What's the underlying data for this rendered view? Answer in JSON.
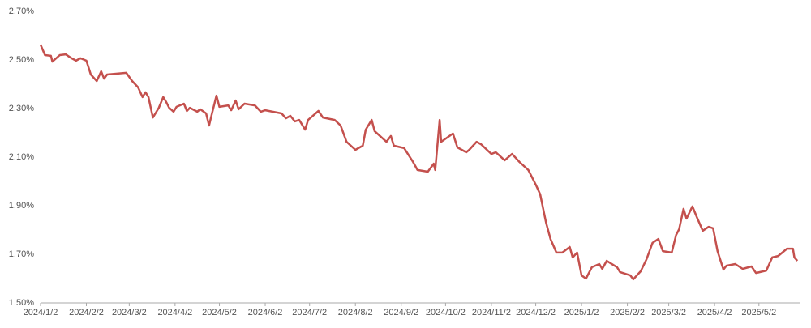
{
  "chart_data": {
    "type": "line",
    "color": "#c4504d",
    "grid": false,
    "x": [
      "2024/1/2",
      "2024/1/5",
      "2024/1/9",
      "2024/1/10",
      "2024/1/15",
      "2024/1/19",
      "2024/1/23",
      "2024/1/26",
      "2024/1/29",
      "2024/2/2",
      "2024/2/5",
      "2024/2/9",
      "2024/2/12",
      "2024/2/14",
      "2024/2/16",
      "2024/2/29",
      "2024/3/4",
      "2024/3/8",
      "2024/3/11",
      "2024/3/13",
      "2024/3/15",
      "2024/3/18",
      "2024/3/22",
      "2024/3/25",
      "2024/3/27",
      "2024/3/29",
      "2024/4/1",
      "2024/4/3",
      "2024/4/8",
      "2024/4/10",
      "2024/4/12",
      "2024/4/17",
      "2024/4/19",
      "2024/4/23",
      "2024/4/25",
      "2024/4/27",
      "2024/4/30",
      "2024/5/2",
      "2024/5/8",
      "2024/5/10",
      "2024/5/13",
      "2024/5/15",
      "2024/5/19",
      "2024/5/26",
      "2024/5/30",
      "2024/6/2",
      "2024/6/13",
      "2024/6/16",
      "2024/6/19",
      "2024/6/22",
      "2024/6/25",
      "2024/6/29",
      "2024/7/1",
      "2024/7/8",
      "2024/7/11",
      "2024/7/19",
      "2024/7/23",
      "2024/7/27",
      "2024/8/2",
      "2024/8/7",
      "2024/8/9",
      "2024/8/13",
      "2024/8/15",
      "2024/8/23",
      "2024/8/26",
      "2024/8/28",
      "2024/9/4",
      "2024/9/10",
      "2024/9/13",
      "2024/9/20",
      "2024/9/24",
      "2024/9/25",
      "2024/9/28",
      "2024/9/29",
      "2024/10/7",
      "2024/10/10",
      "2024/10/16",
      "2024/10/18",
      "2024/10/23",
      "2024/10/26",
      "2024/11/2",
      "2024/11/5",
      "2024/11/11",
      "2024/11/16",
      "2024/11/21",
      "2024/11/27",
      "2024/12/2",
      "2024/12/5",
      "2024/12/9",
      "2024/12/12",
      "2024/12/16",
      "2024/12/20",
      "2024/12/25",
      "2024/12/27",
      "2024/12/30",
      "2025/1/2",
      "2025/1/5",
      "2025/1/9",
      "2025/1/14",
      "2025/1/16",
      "2025/1/19",
      "2025/1/26",
      "2025/1/28",
      "2025/2/4",
      "2025/2/6",
      "2025/2/11",
      "2025/2/15",
      "2025/2/19",
      "2025/2/23",
      "2025/2/26",
      "2025/3/4",
      "2025/3/7",
      "2025/3/9",
      "2025/3/12",
      "2025/3/14",
      "2025/3/18",
      "2025/3/21",
      "2025/3/25",
      "2025/3/29",
      "2025/4/1",
      "2025/4/4",
      "2025/4/8",
      "2025/4/10",
      "2025/4/16",
      "2025/4/21",
      "2025/4/27",
      "2025/4/30",
      "2025/5/7",
      "2025/5/11",
      "2025/5/15",
      "2025/5/21",
      "2025/5/25",
      "2025/5/26",
      "2025/5/28"
    ],
    "values": [
      2.563,
      2.52,
      2.517,
      2.493,
      2.52,
      2.523,
      2.507,
      2.497,
      2.507,
      2.497,
      2.44,
      2.413,
      2.453,
      2.423,
      2.44,
      2.447,
      2.413,
      2.387,
      2.347,
      2.367,
      2.347,
      2.263,
      2.303,
      2.347,
      2.327,
      2.303,
      2.287,
      2.307,
      2.32,
      2.29,
      2.303,
      2.287,
      2.297,
      2.28,
      2.23,
      2.28,
      2.353,
      2.307,
      2.313,
      2.293,
      2.333,
      2.297,
      2.32,
      2.313,
      2.287,
      2.293,
      2.28,
      2.26,
      2.27,
      2.247,
      2.253,
      2.213,
      2.253,
      2.29,
      2.263,
      2.253,
      2.23,
      2.163,
      2.13,
      2.147,
      2.213,
      2.253,
      2.207,
      2.163,
      2.187,
      2.147,
      2.137,
      2.08,
      2.047,
      2.04,
      2.073,
      2.047,
      2.253,
      2.163,
      2.197,
      2.14,
      2.12,
      2.13,
      2.163,
      2.153,
      2.113,
      2.12,
      2.087,
      2.113,
      2.08,
      2.047,
      1.987,
      1.947,
      1.83,
      1.763,
      1.707,
      1.707,
      1.73,
      1.687,
      1.707,
      1.613,
      1.6,
      1.647,
      1.66,
      1.64,
      1.673,
      1.647,
      1.627,
      1.613,
      1.597,
      1.63,
      1.68,
      1.747,
      1.763,
      1.713,
      1.707,
      1.78,
      1.803,
      1.887,
      1.847,
      1.897,
      1.853,
      1.797,
      1.813,
      1.807,
      1.713,
      1.637,
      1.653,
      1.66,
      1.64,
      1.65,
      1.623,
      1.633,
      1.687,
      1.693,
      1.723,
      1.723,
      1.687,
      1.673
    ],
    "xlim": [
      "2024/1/2",
      "2025/5/29"
    ],
    "xticks": [
      "2024/1/2",
      "2024/2/2",
      "2024/3/2",
      "2024/4/2",
      "2024/5/2",
      "2024/6/2",
      "2024/7/2",
      "2024/8/2",
      "2024/9/2",
      "2024/10/2",
      "2024/11/2",
      "2024/12/2",
      "2025/1/2",
      "2025/2/2",
      "2025/3/2",
      "2025/4/2",
      "2025/5/2"
    ],
    "ylim": [
      1.5,
      2.7
    ],
    "yticks": [
      {
        "value": 1.5,
        "label": "1.50%"
      },
      {
        "value": 1.7,
        "label": "1.70%"
      },
      {
        "value": 1.9,
        "label": "1.90%"
      },
      {
        "value": 2.1,
        "label": "2.10%"
      },
      {
        "value": 2.3,
        "label": "2.30%"
      },
      {
        "value": 2.5,
        "label": "2.50%"
      },
      {
        "value": 2.7,
        "label": "2.70%"
      }
    ]
  }
}
